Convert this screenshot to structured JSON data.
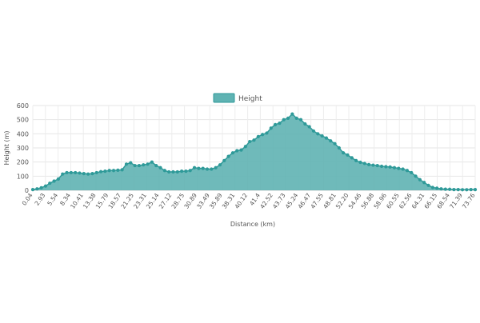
{
  "chart_data": {
    "type": "area",
    "xlabel": "Distance (km)",
    "ylabel": "Height (m)",
    "ylim": [
      0,
      600
    ],
    "yticks": [
      0,
      100,
      200,
      300,
      400,
      500,
      600
    ],
    "grid": true,
    "legend_position": "top-center",
    "color": "#2f9a99",
    "fill_color": "#5fb3b3",
    "x_tick_labels": [
      "0.04",
      "2.93",
      "5.54",
      "8.34",
      "10.41",
      "13.38",
      "15.79",
      "18.57",
      "21.25",
      "23.31",
      "25.14",
      "27.12",
      "28.75",
      "30.89",
      "33.49",
      "35.89",
      "38.31",
      "40.12",
      "41.4",
      "42.52",
      "43.73",
      "45.24",
      "46.47",
      "47.55",
      "48.81",
      "52.20",
      "54.46",
      "56.88",
      "58.96",
      "60.55",
      "62.56",
      "64.31",
      "66.15",
      "68.54",
      "71.39",
      "73.76"
    ],
    "series": [
      {
        "name": "Height",
        "values": [
          5,
          10,
          18,
          30,
          50,
          65,
          80,
          115,
          125,
          125,
          125,
          122,
          118,
          115,
          118,
          125,
          132,
          135,
          140,
          140,
          142,
          145,
          185,
          195,
          175,
          175,
          180,
          185,
          200,
          175,
          160,
          140,
          130,
          130,
          130,
          135,
          135,
          140,
          160,
          155,
          155,
          150,
          150,
          160,
          180,
          210,
          240,
          265,
          280,
          285,
          310,
          345,
          355,
          380,
          395,
          405,
          440,
          465,
          475,
          500,
          510,
          540,
          510,
          500,
          470,
          450,
          420,
          400,
          385,
          370,
          350,
          330,
          300,
          265,
          250,
          230,
          210,
          198,
          190,
          182,
          178,
          175,
          170,
          167,
          165,
          160,
          155,
          150,
          140,
          125,
          100,
          75,
          55,
          35,
          20,
          15,
          10,
          8,
          7,
          5,
          5,
          4,
          4,
          5,
          5
        ]
      }
    ]
  }
}
